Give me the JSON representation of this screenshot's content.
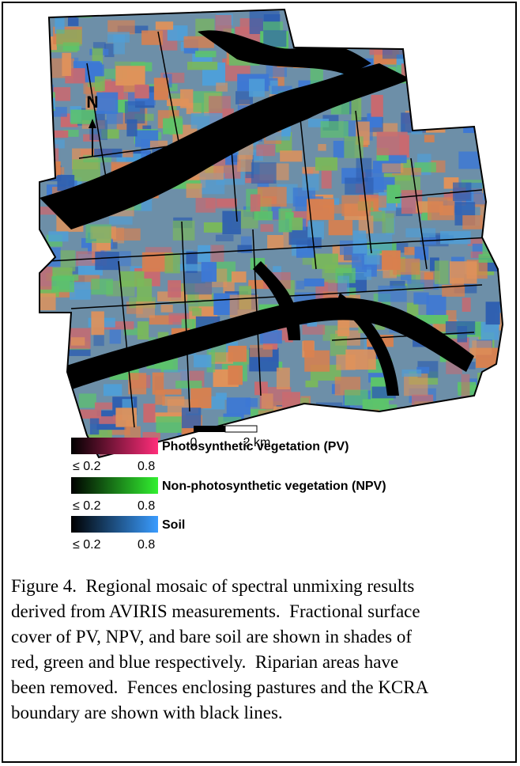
{
  "figure": {
    "north_label": "N",
    "scale_bar": {
      "start_label": "0",
      "end_label": "2 km"
    },
    "legend": [
      {
        "label": "Photosynthetic vegetation (PV)",
        "min_label": "≤ 0.2",
        "max_label": "0.8"
      },
      {
        "label": "Non-photosynthetic vegetation (NPV)",
        "min_label": "≤ 0.2",
        "max_label": "0.8"
      },
      {
        "label": "Soil",
        "min_label": "≤ 0.2",
        "max_label": "0.8"
      }
    ],
    "caption_lines": [
      "Figure 4.  Regional mosaic of spectral unmixing results",
      "derived from AVIRIS measurements.  Fractional surface",
      "cover of PV, NPV, and bare soil are shown in shades of",
      "red, green and blue respectively.  Riparian areas have",
      "been removed.  Fences enclosing pastures and the KCRA",
      "boundary are shown with black lines."
    ]
  }
}
